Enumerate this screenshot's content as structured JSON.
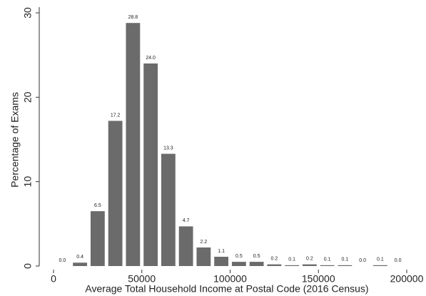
{
  "chart_data": {
    "type": "histogram",
    "xlabel": "Average Total Household Income at Postal Code (2016 Census)",
    "ylabel": "Percentage of Exams",
    "bins": [
      0,
      10000,
      20000,
      30000,
      40000,
      50000,
      60000,
      70000,
      80000,
      90000,
      100000,
      110000,
      120000,
      130000,
      140000,
      150000,
      160000,
      170000,
      180000,
      190000,
      200000
    ],
    "values": [
      0,
      0.4,
      6.5,
      17.2,
      28.8,
      24,
      13.3,
      4.7,
      2.2,
      1.1,
      0.5,
      0.5,
      0.2,
      0.1,
      0.2,
      0.1,
      0.1,
      0,
      0.1,
      0
    ],
    "value_labels": [
      "0.0",
      "0.4",
      "6.5",
      "17.2",
      "28.8",
      "24.0",
      "13.3",
      "4.7",
      "2.2",
      "1.1",
      "0.5",
      "0.5",
      "0.2",
      "0.1",
      "0.2",
      "0.1",
      "0.1",
      "0.0",
      "0.1",
      "0.0"
    ],
    "color": "#6b6b6b",
    "xlim": [
      0,
      200000
    ],
    "xticks": [
      0,
      50000,
      100000,
      150000,
      200000
    ],
    "ylim": [
      0,
      30
    ],
    "yticks": [
      0,
      10,
      20,
      30
    ]
  }
}
